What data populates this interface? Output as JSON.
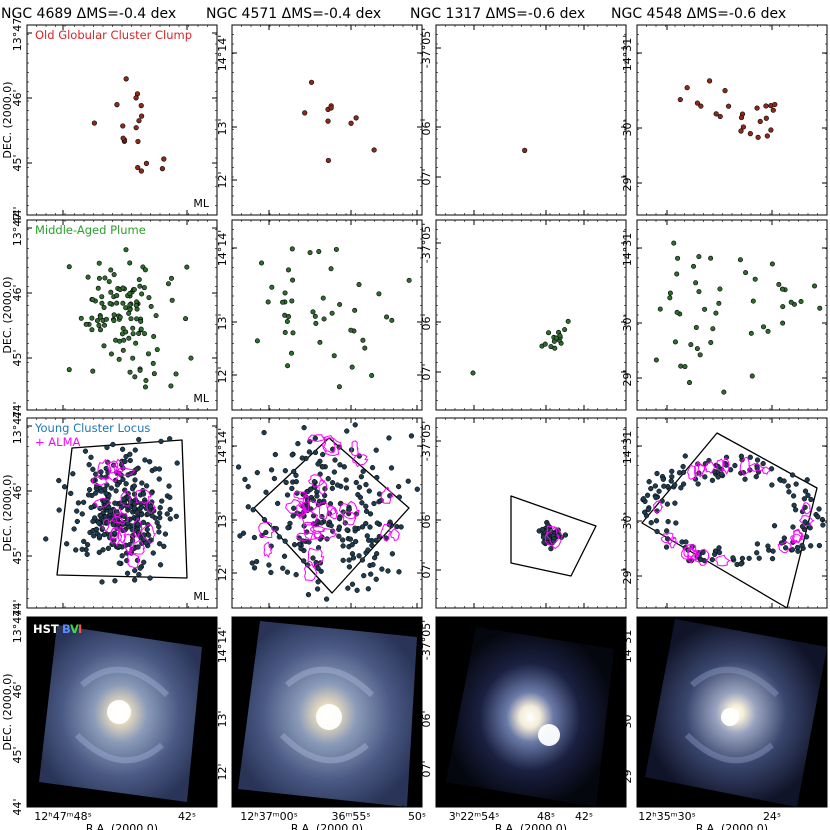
{
  "figure": {
    "columns": [
      {
        "title": "NGC 4689  ΔMS=-0.4 dex",
        "y_ticks": [
          "13°47'",
          "46'",
          "45'",
          "44'"
        ],
        "x_ticks": [
          "12ʰ47ᵐ48ˢ",
          "42ˢ"
        ]
      },
      {
        "title": "NGC 4571  ΔMS=-0.4 dex",
        "y_ticks": [
          "14°14'",
          "13'",
          "12'"
        ],
        "x_ticks": [
          "12ʰ37ᵐ00ˢ",
          "36ᵐ55ˢ",
          "50ˢ"
        ]
      },
      {
        "title": "NGC 1317  ΔMS=-0.6 dex",
        "y_ticks": [
          "-37°05'",
          "06'",
          "07'"
        ],
        "x_ticks": [
          "3ʰ22ᵐ54ˢ",
          "48ˢ",
          "42ˢ"
        ]
      },
      {
        "title": "NGC 4548  ΔMS=-0.6 dex",
        "y_ticks": [
          "14°31'",
          "30'",
          "29'"
        ],
        "x_ticks": [
          "12ʰ35ᵐ30ˢ",
          "24ˢ"
        ]
      }
    ],
    "rows": [
      {
        "label": "Old Globular Cluster Clump",
        "color": "#d62728",
        "sublabel": ""
      },
      {
        "label": "Middle-Aged Plume",
        "color": "#2ca02c",
        "sublabel": ""
      },
      {
        "label": "Young Cluster Locus",
        "color": "#1f77b4",
        "sublabel": "+ ALMA"
      },
      {
        "label": "HST",
        "color": "#ffffff",
        "sublabel": ""
      }
    ],
    "hst_bands": [
      "B",
      "V",
      "I"
    ],
    "hst_band_colors": [
      "#5b8cff",
      "#3ddc3d",
      "#ff5050"
    ],
    "y_axis_label": "DEC. (2000.0)",
    "x_axis_label": "R.A. (2000.0)",
    "ml_label": "ML",
    "colors": {
      "old_marker": "#8b2a1a",
      "mid_marker": "#2e6b2e",
      "young_marker": "#1f3b4d",
      "alma": "#ff00ff",
      "footprint": "#000000"
    }
  },
  "chart_data": [
    {
      "type": "scatter",
      "galaxy": "NGC 4689",
      "row": "Old Globular Cluster Clump",
      "ra_offset_arcsec": [
        -12.2,
        -11.1,
        4.0,
        -15.2,
        -15.5,
        -13.4,
        -11.2,
        -12.6,
        -1.9,
        -2.0,
        -12.4,
        -0.6,
        21.8,
        -31.9,
        -0.9,
        -15.3,
        -19.3,
        -3.3,
        -33.0
      ],
      "dec_offset_arcsec": [
        34.4,
        29.1,
        20.2,
        18.9,
        5.1,
        -0.9,
        -10.1,
        -28.2,
        -28.0,
        -26.3,
        -62.6,
        -7.8,
        -4.0,
        -64.0,
        -23.9,
        -67.1,
        -57.1,
        54.1,
        -51.3
      ]
    },
    {
      "type": "scatter",
      "galaxy": "NGC 4571",
      "row": "Old Globular Cluster Clump",
      "ra_offset_arcsec": [
        -23.0,
        12.2,
        -3.3,
        -0.8,
        -3.3,
        17.6,
        -37.2,
        -1.1,
        -0.8,
        -19.0
      ],
      "dec_offset_arcsec": [
        2.8,
        49.6,
        18.6,
        14.0,
        15.9,
        9.4,
        -39.4,
        -53.2,
        -1.5,
        -4.3
      ]
    },
    {
      "type": "scatter",
      "galaxy": "NGC 1317",
      "row": "Old Globular Cluster Clump",
      "ra_offset_arcsec": [
        5.0
      ],
      "dec_offset_arcsec": [
        -40.0
      ]
    },
    {
      "type": "scatter",
      "galaxy": "NGC 4548",
      "row": "Old Globular Cluster Clump",
      "ra_offset_arcsec": [
        5.5,
        17.7,
        35.4,
        40.8,
        -22.3,
        -26.8,
        -27.1,
        -27.9,
        -20.6,
        2.7,
        9.3,
        12.5,
        -30.7,
        -30.7,
        -19.8,
        -32.6,
        -33.8,
        -14.5,
        -9.0,
        -8.3,
        -7.5,
        24.6,
        27.3,
        -7.1
      ],
      "dec_offset_arcsec": [
        38.7,
        51.5,
        42.5,
        26.9,
        -1.9,
        18.5,
        2.3,
        -21.0,
        -22.8,
        18.2,
        4.7,
        8.1,
        18.9,
        -13.2,
        15.7,
        12.9,
        20.5,
        -17.9,
        -9.1,
        7.8,
        3.2,
        18.3,
        22.3,
        -14.5
      ]
    },
    {
      "type": "scatter",
      "galaxy": "NGC 4689",
      "row": "Middle-Aged Plume",
      "n_points": 120
    },
    {
      "type": "scatter",
      "galaxy": "NGC 4571",
      "row": "Middle-Aged Plume",
      "n_points": 45
    },
    {
      "type": "scatter",
      "galaxy": "NGC 1317",
      "row": "Middle-Aged Plume",
      "n_points": 15
    },
    {
      "type": "scatter",
      "galaxy": "NGC 4548",
      "row": "Middle-Aged Plume",
      "n_points": 50
    },
    {
      "type": "scatter",
      "galaxy": "NGC 4689",
      "row": "Young Cluster Locus",
      "n_points": 320,
      "overlay": "ALMA contours + footprint"
    },
    {
      "type": "scatter",
      "galaxy": "NGC 4571",
      "row": "Young Cluster Locus",
      "n_points": 260,
      "overlay": "ALMA contours + footprint"
    },
    {
      "type": "scatter",
      "galaxy": "NGC 1317",
      "row": "Young Cluster Locus",
      "n_points": 40,
      "overlay": "ALMA contours + footprint"
    },
    {
      "type": "scatter",
      "galaxy": "NGC 4548",
      "row": "Young Cluster Locus",
      "n_points": 160,
      "overlay": "ALMA contours + footprint"
    },
    {
      "type": "image",
      "galaxy": "NGC 4689",
      "row": "HST",
      "bands": [
        "B",
        "V",
        "I"
      ]
    },
    {
      "type": "image",
      "galaxy": "NGC 4571",
      "row": "HST",
      "bands": [
        "B",
        "V",
        "I"
      ]
    },
    {
      "type": "image",
      "galaxy": "NGC 1317",
      "row": "HST",
      "bands": [
        "B",
        "V",
        "I"
      ]
    },
    {
      "type": "image",
      "galaxy": "NGC 4548",
      "row": "HST",
      "bands": [
        "B",
        "V",
        "I"
      ]
    }
  ]
}
